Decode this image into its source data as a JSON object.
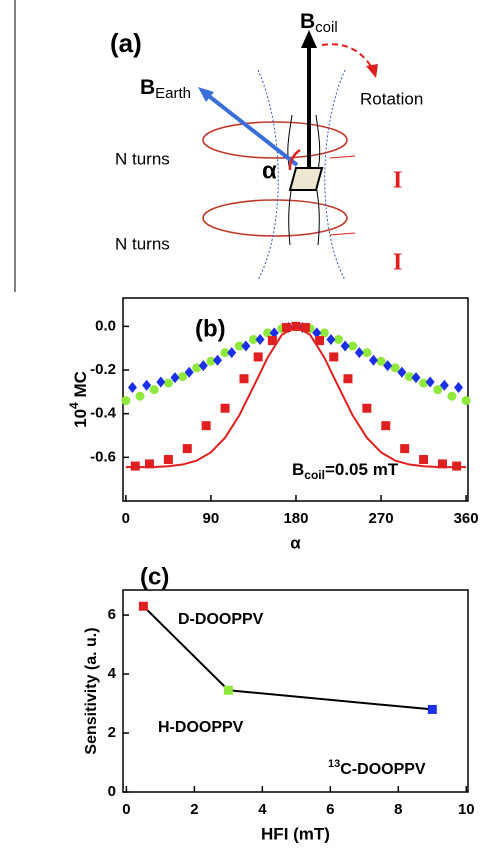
{
  "diagram": {
    "panel_label": "(a)",
    "b_coil": {
      "main": "B",
      "sub": "coil"
    },
    "b_earth": {
      "main": "B",
      "sub": "Earth"
    },
    "rotation": "Rotation",
    "coil_labels": [
      "N turns",
      "N turns"
    ],
    "angle_label": "α",
    "current_labels": [
      "I",
      "I"
    ]
  },
  "chart_data": [
    {
      "type": "scatter",
      "panel_label": "(b)",
      "xlabel": "α",
      "ylabel": {
        "base": "10",
        "sup": "4",
        "rest": " MC"
      },
      "annotation": {
        "main": "B",
        "sub": "coil",
        "rest": "=0.05 mT"
      },
      "xlim": [
        -3,
        362
      ],
      "xticks": [
        0,
        90,
        180,
        270,
        360
      ],
      "ylim": [
        -0.8,
        0.13
      ],
      "yticks": [
        {
          "value": 0,
          "label": "0.0"
        },
        -0.2,
        -0.4,
        -0.6
      ],
      "series": [
        {
          "mode": "markers",
          "marker": "circle",
          "color": "#8fe83c",
          "x": [
            0,
            15,
            30,
            45,
            60,
            75,
            90,
            105,
            120,
            135,
            150,
            165,
            180,
            195,
            210,
            225,
            240,
            255,
            270,
            285,
            300,
            315,
            330,
            345,
            360
          ],
          "values": [
            -0.34,
            -0.32,
            -0.29,
            -0.26,
            -0.23,
            -0.19,
            -0.16,
            -0.12,
            -0.09,
            -0.06,
            -0.03,
            -0.01,
            0,
            -0.01,
            -0.03,
            -0.06,
            -0.09,
            -0.12,
            -0.16,
            -0.19,
            -0.23,
            -0.26,
            -0.29,
            -0.32,
            -0.34
          ]
        },
        {
          "mode": "markers",
          "marker": "diamond",
          "color": "#1a2fe6",
          "x": [
            7,
            22,
            37,
            52,
            67,
            82,
            97,
            112,
            127,
            142,
            157,
            172,
            187,
            202,
            217,
            232,
            247,
            262,
            277,
            292,
            307,
            322,
            337,
            352
          ],
          "values": [
            -0.28,
            -0.27,
            -0.255,
            -0.235,
            -0.21,
            -0.18,
            -0.155,
            -0.12,
            -0.09,
            -0.06,
            -0.03,
            -0.005,
            -0.005,
            -0.03,
            -0.06,
            -0.09,
            -0.12,
            -0.155,
            -0.18,
            -0.21,
            -0.235,
            -0.255,
            -0.27,
            -0.28
          ]
        },
        {
          "mode": "line",
          "color": "#e02020",
          "x": [
            0,
            15,
            30,
            45,
            60,
            75,
            90,
            105,
            120,
            135,
            150,
            165,
            180,
            195,
            210,
            225,
            240,
            255,
            270,
            285,
            300,
            315,
            330,
            345,
            360
          ],
          "values": [
            -0.645,
            -0.645,
            -0.644,
            -0.641,
            -0.633,
            -0.615,
            -0.577,
            -0.51,
            -0.408,
            -0.277,
            -0.143,
            -0.039,
            0,
            -0.039,
            -0.143,
            -0.277,
            -0.408,
            -0.51,
            -0.577,
            -0.615,
            -0.633,
            -0.641,
            -0.644,
            -0.645,
            -0.645
          ]
        },
        {
          "mode": "markers",
          "marker": "square",
          "color": "#e02020",
          "x": [
            10,
            25,
            45,
            65,
            85,
            105,
            125,
            140,
            155,
            170,
            180,
            190,
            205,
            220,
            235,
            255,
            275,
            295,
            315,
            335,
            350
          ],
          "values": [
            -0.64,
            -0.63,
            -0.61,
            -0.56,
            -0.455,
            -0.375,
            -0.24,
            -0.14,
            -0.065,
            -0.005,
            0,
            -0.005,
            -0.065,
            -0.14,
            -0.24,
            -0.375,
            -0.455,
            -0.56,
            -0.61,
            -0.63,
            -0.64
          ]
        }
      ]
    },
    {
      "type": "line",
      "panel_label": "(c)",
      "xlabel": "HFI (mT)",
      "ylabel": "Sensitivity (a. u.)",
      "xlim": [
        -0.1,
        10.05
      ],
      "xticks": [
        0,
        2,
        4,
        6,
        8,
        10
      ],
      "ylim": [
        0,
        6.85
      ],
      "yticks": [
        0,
        2,
        4,
        6
      ],
      "x": [
        0.5,
        3,
        9
      ],
      "values": [
        6.3,
        3.45,
        2.8
      ],
      "line_color": "#000000",
      "point_colors": [
        "#e02020",
        "#8fe83c",
        "#1a2fe6"
      ],
      "point_labels": [
        {
          "text": "D-DOOPPV"
        },
        {
          "text": "H-DOOPPV"
        },
        {
          "sup": "13",
          "text": "C-DOOPPV"
        }
      ]
    }
  ]
}
